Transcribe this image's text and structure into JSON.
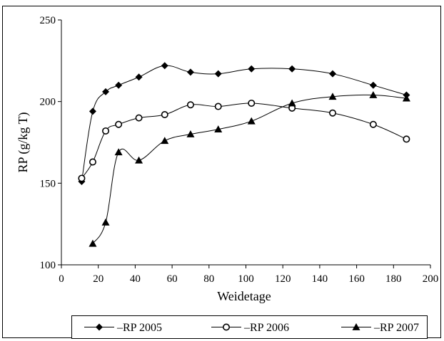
{
  "chart_data": {
    "type": "line",
    "title": "",
    "xlabel": "Weidetage",
    "ylabel": "RP (g/kg T)",
    "xlim": [
      0,
      200
    ],
    "ylim": [
      100,
      250
    ],
    "x_ticks": [
      0,
      20,
      40,
      60,
      80,
      100,
      120,
      140,
      160,
      180,
      200
    ],
    "y_ticks": [
      100,
      150,
      200,
      250
    ],
    "grid": false,
    "legend_position": "bottom",
    "series": [
      {
        "name": "RP 2005",
        "marker": "diamond",
        "color": "#000000",
        "x": [
          11,
          17,
          24,
          31,
          42,
          56,
          70,
          85,
          103,
          125,
          147,
          169,
          187
        ],
        "y": [
          151,
          194,
          206,
          210,
          215,
          222,
          218,
          217,
          220,
          220,
          217,
          210,
          204
        ]
      },
      {
        "name": "RP 2006",
        "marker": "circle-open",
        "color": "#000000",
        "x": [
          11,
          17,
          24,
          31,
          42,
          56,
          70,
          85,
          103,
          125,
          147,
          169,
          187
        ],
        "y": [
          153,
          163,
          182,
          186,
          190,
          192,
          198,
          197,
          199,
          196,
          193,
          186,
          177
        ]
      },
      {
        "name": "RP 2007",
        "marker": "triangle",
        "color": "#000000",
        "x": [
          17,
          24,
          31,
          42,
          56,
          70,
          85,
          103,
          125,
          147,
          169,
          187
        ],
        "y": [
          113,
          126,
          169,
          164,
          176,
          180,
          183,
          188,
          199,
          203,
          204,
          202
        ]
      }
    ]
  }
}
